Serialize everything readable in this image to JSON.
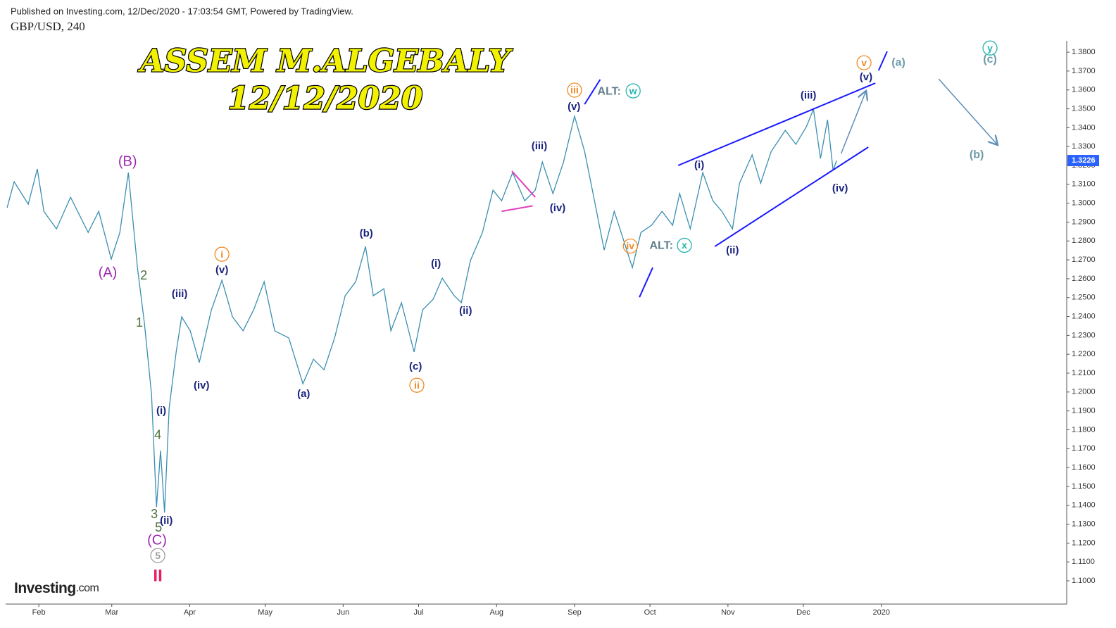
{
  "header": {
    "published": "Published on Investing.com, 12/Dec/2020 - 17:03:54 GMT, Powered by TradingView.",
    "symbol": "GBP/USD, 240"
  },
  "watermark": {
    "line1": "ASSEM M.ALGEBALY",
    "line2": "12/12/2020"
  },
  "logo": {
    "brand": "Investing",
    "suffix": ".com"
  },
  "chart_data": {
    "type": "line",
    "x": [
      18.4,
      21.2,
      26.8,
      30.4,
      33,
      38,
      43.6,
      50.6,
      54.8,
      59.8,
      63.2,
      66.6,
      70.2,
      73,
      75.8,
      77.8,
      79.4,
      81,
      82.8,
      85.6,
      87.8,
      91.2,
      94.8,
      99.6,
      103.8,
      108,
      112.2,
      116.4,
      120.6,
      124.8,
      130.4,
      136,
      140.2,
      144.4,
      148.6,
      152.8,
      157,
      160.9,
      164,
      168.2,
      171,
      175.2,
      180.2,
      183.6,
      187.8,
      191.4,
      196.2,
      199,
      202.6,
      207.4,
      211.6,
      215,
      219.4,
      224.2,
      228.4,
      231.2,
      235.4,
      239.6,
      244,
      248,
      252.2,
      255.8,
      259.8,
      263.4,
      267,
      270.4,
      274.6,
      278.8,
      283,
      285.8,
      290,
      295,
      299,
      302.6,
      306.8,
      309.6,
      314.6,
      318,
      322.2,
      327.8,
      332,
      336.2,
      339,
      341.8,
      344.6,
      346.8,
      348.2
    ],
    "series": [
      {
        "name": "GBP/USD",
        "color": "#3a8fb0",
        "values": [
          1.2976,
          1.3114,
          1.2995,
          1.3181,
          1.2957,
          1.2864,
          1.3032,
          1.2845,
          1.2957,
          1.2704,
          1.2845,
          1.3162,
          1.2659,
          1.2361,
          1.1988,
          1.1391,
          1.169,
          1.1362,
          1.1913,
          1.2212,
          1.2398,
          1.2324,
          1.2156,
          1.2435,
          1.2592,
          1.2398,
          1.2324,
          1.2435,
          1.2584,
          1.2324,
          1.2286,
          1.2044,
          1.2174,
          1.2118,
          1.2286,
          1.251,
          1.2584,
          1.2771,
          1.251,
          1.2547,
          1.2324,
          1.2473,
          1.2212,
          1.2435,
          1.2491,
          1.2603,
          1.251,
          1.2473,
          1.2696,
          1.2845,
          1.3069,
          1.3013,
          1.3162,
          1.3013,
          1.3069,
          1.3218,
          1.3051,
          1.3218,
          1.3461,
          1.3274,
          1.2995,
          1.2752,
          1.2957,
          1.2808,
          1.2659,
          1.2845,
          1.2883,
          1.2957,
          1.2883,
          1.3051,
          1.2864,
          1.3162,
          1.3013,
          1.2957,
          1.2864,
          1.3106,
          1.3256,
          1.3106,
          1.3274,
          1.3386,
          1.3312,
          1.3405,
          1.3498,
          1.3237,
          1.3442,
          1.3174,
          1.3226
        ]
      }
    ],
    "last_price": {
      "value": 1.3226,
      "label": "1.3226",
      "color": "#2962ff"
    },
    "xlim": [
      17.8,
      439.7
    ],
    "ylim": [
      1.0877,
      1.386
    ],
    "xticks": [
      {
        "value": 31,
        "label": "Feb"
      },
      {
        "value": 60,
        "label": "Mar"
      },
      {
        "value": 91,
        "label": "Apr"
      },
      {
        "value": 121,
        "label": "May"
      },
      {
        "value": 152,
        "label": "Jun"
      },
      {
        "value": 182,
        "label": "Jul"
      },
      {
        "value": 213,
        "label": "Aug"
      },
      {
        "value": 244,
        "label": "Sep"
      },
      {
        "value": 274,
        "label": "Oct"
      },
      {
        "value": 305,
        "label": "Nov"
      },
      {
        "value": 335,
        "label": "Dec"
      },
      {
        "value": 366,
        "label": "2020"
      }
    ],
    "yticks": [
      {
        "value": 1.1,
        "label": "1.1000"
      },
      {
        "value": 1.11,
        "label": "1.1100"
      },
      {
        "value": 1.12,
        "label": "1.1200"
      },
      {
        "value": 1.13,
        "label": "1.1300"
      },
      {
        "value": 1.14,
        "label": "1.1400"
      },
      {
        "value": 1.15,
        "label": "1.1500"
      },
      {
        "value": 1.16,
        "label": "1.1600"
      },
      {
        "value": 1.17,
        "label": "1.1700"
      },
      {
        "value": 1.18,
        "label": "1.1800"
      },
      {
        "value": 1.19,
        "label": "1.1900"
      },
      {
        "value": 1.2,
        "label": "1.2000"
      },
      {
        "value": 1.21,
        "label": "1.2100"
      },
      {
        "value": 1.22,
        "label": "1.2200"
      },
      {
        "value": 1.23,
        "label": "1.2300"
      },
      {
        "value": 1.24,
        "label": "1.2400"
      },
      {
        "value": 1.25,
        "label": "1.2500"
      },
      {
        "value": 1.26,
        "label": "1.2600"
      },
      {
        "value": 1.27,
        "label": "1.2700"
      },
      {
        "value": 1.28,
        "label": "1.2800"
      },
      {
        "value": 1.29,
        "label": "1.2900"
      },
      {
        "value": 1.3,
        "label": "1.3000"
      },
      {
        "value": 1.31,
        "label": "1.3100"
      },
      {
        "value": 1.32,
        "label": "1.3200"
      },
      {
        "value": 1.33,
        "label": "1.3300"
      },
      {
        "value": 1.34,
        "label": "1.3400"
      },
      {
        "value": 1.35,
        "label": "1.3500"
      },
      {
        "value": 1.36,
        "label": "1.3600"
      },
      {
        "value": 1.37,
        "label": "1.3700"
      },
      {
        "value": 1.38,
        "label": "1.3800"
      }
    ],
    "grid": false,
    "lines": [
      {
        "x": [
          285.2,
          363.6
        ],
        "y": [
          1.32,
          1.3636
        ],
        "color": "#1a1aff",
        "arrow": false
      },
      {
        "x": [
          299.8,
          360.8
        ],
        "y": [
          1.2771,
          1.3297
        ],
        "color": "#1a1aff",
        "arrow": false
      },
      {
        "x": [
          248,
          254.2
        ],
        "y": [
          1.3524,
          1.3655
        ],
        "color": "#1a1aff",
        "arrow": false
      },
      {
        "x": [
          269.8,
          275.1
        ],
        "y": [
          1.2502,
          1.2659
        ],
        "color": "#1a1aff",
        "arrow": false
      },
      {
        "x": [
          364.9,
          368.3
        ],
        "y": [
          1.3703,
          1.3804
        ],
        "color": "#1a1aff",
        "arrow": false
      },
      {
        "x": [
          219.1,
          228.4
        ],
        "y": [
          1.317,
          1.3032
        ],
        "color": "#e040c0",
        "arrow": false
      },
      {
        "x": [
          215,
          227.4
        ],
        "y": [
          1.2957,
          1.2986
        ],
        "color": "#e040c0",
        "arrow": false
      },
      {
        "x": [
          350,
          359.8
        ],
        "y": [
          1.3263,
          1.3591
        ],
        "color": "#5b8db8",
        "arrow": true
      },
      {
        "x": [
          388.8,
          412
        ],
        "y": [
          1.3658,
          1.3312
        ],
        "color": "#5b8db8",
        "arrow": true
      }
    ],
    "annotations": [
      {
        "text": "(B)",
        "x": 66.3,
        "y": 1.3221,
        "color": "#9c27b0",
        "circled": false
      },
      {
        "text": "(A)",
        "x": 58.4,
        "y": 1.2633,
        "color": "#9c27b0",
        "circled": false
      },
      {
        "text": "2",
        "x": 72.7,
        "y": 1.2618,
        "color": "#4a6f3a",
        "circled": false
      },
      {
        "text": "1",
        "x": 71,
        "y": 1.2368,
        "color": "#4a6f3a",
        "circled": false
      },
      {
        "text": "4",
        "x": 78.3,
        "y": 1.1772,
        "color": "#4a6f3a",
        "circled": false
      },
      {
        "text": "3",
        "x": 76.9,
        "y": 1.1354,
        "color": "#4a6f3a",
        "circled": false
      },
      {
        "text": "5",
        "x": 78.6,
        "y": 1.1283,
        "color": "#4a6f3a",
        "circled": false
      },
      {
        "text": "(C)",
        "x": 78,
        "y": 1.1216,
        "color": "#9c27b0",
        "circled": false
      },
      {
        "text": "5",
        "x": 78.3,
        "y": 1.1134,
        "color": "#9e9e9e",
        "circled": true
      },
      {
        "text": "II",
        "x": 78.3,
        "y": 1.1026,
        "color": "#e91e63",
        "circled": false
      },
      {
        "text": "(i)",
        "x": 79.7,
        "y": 1.1902,
        "color": "#1a237e",
        "circled": false
      },
      {
        "text": "(ii)",
        "x": 81.7,
        "y": 1.1321,
        "color": "#1a237e",
        "circled": false
      },
      {
        "text": "(iii)",
        "x": 87,
        "y": 1.2521,
        "color": "#1a237e",
        "circled": false
      },
      {
        "text": "(iv)",
        "x": 95.7,
        "y": 1.2036,
        "color": "#1a237e",
        "circled": false
      },
      {
        "text": "(v)",
        "x": 103.8,
        "y": 1.2648,
        "color": "#1a237e",
        "circled": false
      },
      {
        "text": "i",
        "x": 103.8,
        "y": 1.273,
        "color": "#f08a24",
        "circled": true
      },
      {
        "text": "(a)",
        "x": 136.3,
        "y": 1.1992,
        "color": "#1a237e",
        "circled": false
      },
      {
        "text": "(b)",
        "x": 161.2,
        "y": 1.2842,
        "color": "#1a237e",
        "circled": false
      },
      {
        "text": "(c)",
        "x": 180.8,
        "y": 1.2137,
        "color": "#1a237e",
        "circled": false
      },
      {
        "text": "ii",
        "x": 181.3,
        "y": 1.2036,
        "color": "#f08a24",
        "circled": true
      },
      {
        "text": "(i)",
        "x": 188.9,
        "y": 1.2681,
        "color": "#1a237e",
        "circled": false
      },
      {
        "text": "(ii)",
        "x": 200.7,
        "y": 1.2432,
        "color": "#1a237e",
        "circled": false
      },
      {
        "text": "(iii)",
        "x": 230,
        "y": 1.3304,
        "color": "#1a237e",
        "circled": false
      },
      {
        "text": "(iv)",
        "x": 237.3,
        "y": 1.2976,
        "color": "#1a237e",
        "circled": false
      },
      {
        "text": "(v)",
        "x": 243.8,
        "y": 1.3513,
        "color": "#1a237e",
        "circled": false
      },
      {
        "text": "iii",
        "x": 244,
        "y": 1.3599,
        "color": "#f08a24",
        "circled": true
      },
      {
        "text": "ALT:",
        "x": 257.8,
        "y": 1.3595,
        "color": "#607d8b",
        "circled": false
      },
      {
        "text": "w",
        "x": 267.3,
        "y": 1.3595,
        "color": "#26b5b0",
        "circled": true
      },
      {
        "text": "iv",
        "x": 266.2,
        "y": 1.2773,
        "color": "#f08a24",
        "circled": true
      },
      {
        "text": "ALT:",
        "x": 278.5,
        "y": 1.2777,
        "color": "#607d8b",
        "circled": false
      },
      {
        "text": "x",
        "x": 287.7,
        "y": 1.2777,
        "color": "#26b5b0",
        "circled": true
      },
      {
        "text": "(i)",
        "x": 293.6,
        "y": 1.3203,
        "color": "#1a237e",
        "circled": false
      },
      {
        "text": "(ii)",
        "x": 306.8,
        "y": 1.2752,
        "color": "#1a237e",
        "circled": false
      },
      {
        "text": "(iii)",
        "x": 337,
        "y": 1.3573,
        "color": "#1a237e",
        "circled": false
      },
      {
        "text": "(iv)",
        "x": 349.6,
        "y": 1.308,
        "color": "#1a237e",
        "circled": false
      },
      {
        "text": "v",
        "x": 359.1,
        "y": 1.3744,
        "color": "#f08a24",
        "circled": true
      },
      {
        "text": "(v)",
        "x": 359.9,
        "y": 1.3669,
        "color": "#1a237e",
        "circled": false
      },
      {
        "text": "(a)",
        "x": 372.8,
        "y": 1.3748,
        "color": "#6f9aa8",
        "circled": false
      },
      {
        "text": "y",
        "x": 409.2,
        "y": 1.3822,
        "color": "#26b5b0",
        "circled": true
      },
      {
        "text": "(c)",
        "x": 409.2,
        "y": 1.3763,
        "color": "#6f9aa8",
        "circled": false
      },
      {
        "text": "(b)",
        "x": 403.9,
        "y": 1.3259,
        "color": "#6f9aa8",
        "circled": false
      }
    ]
  }
}
